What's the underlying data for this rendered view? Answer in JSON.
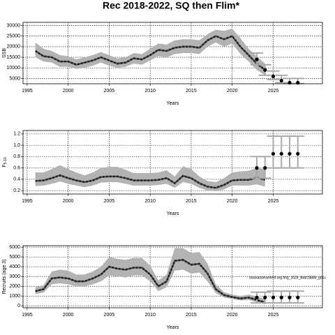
{
  "title": "Rec 2018-2022, SQ then Flim*",
  "chart_data": [
    {
      "type": "line",
      "ylabel": "SSB",
      "xlabel": "Years",
      "grid": true,
      "xlim": [
        1994.5,
        2031
      ],
      "xticks": [
        1995,
        2000,
        2005,
        2010,
        2015,
        2020,
        2025
      ],
      "ylim": [
        2500,
        31500
      ],
      "yticks": [
        5000,
        10000,
        15000,
        20000,
        25000,
        30000
      ],
      "x": [
        1996,
        1997,
        1998,
        1999,
        2000,
        2001,
        2002,
        2003,
        2004,
        2005,
        2006,
        2007,
        2008,
        2009,
        2010,
        2011,
        2012,
        2013,
        2014,
        2015,
        2016,
        2017,
        2018,
        2019,
        2020,
        2021,
        2022,
        2023,
        2024
      ],
      "series": [
        {
          "color": "#222222",
          "band_color": "#b3b3b3",
          "values": [
            18000,
            15500,
            15000,
            13000,
            13000,
            11500,
            12500,
            13500,
            15000,
            13500,
            12000,
            12500,
            14500,
            14000,
            16000,
            18500,
            18000,
            19500,
            20000,
            20000,
            19500,
            23000,
            25000,
            23500,
            25000,
            20000,
            16000,
            12000,
            9000
          ],
          "upper": [
            22000,
            19000,
            18000,
            16000,
            15500,
            14000,
            15000,
            16000,
            17500,
            16000,
            14500,
            15000,
            17000,
            16500,
            19000,
            21500,
            21000,
            23000,
            23500,
            23500,
            23000,
            26000,
            28000,
            27500,
            28500,
            24000,
            19000,
            15500,
            12000
          ],
          "lower": [
            15000,
            13000,
            12500,
            10500,
            10500,
            9500,
            10000,
            11000,
            12500,
            11000,
            10000,
            10500,
            12000,
            11500,
            13500,
            15500,
            15000,
            16500,
            17000,
            17000,
            16500,
            20000,
            22000,
            20000,
            21500,
            16500,
            13000,
            9000,
            6500
          ]
        }
      ],
      "projection": {
        "color": "#000000",
        "bar_color": "#aaaaaa",
        "x": [
          2023,
          2024,
          2025,
          2026,
          2027,
          2028
        ],
        "values": [
          14000,
          9000,
          6000,
          4000,
          3000,
          3000
        ],
        "lower": [
          11500,
          6500,
          4500,
          3000,
          2600,
          2600
        ],
        "upper": [
          17000,
          11500,
          8500,
          6500,
          5000,
          5000
        ]
      }
    },
    {
      "type": "line",
      "ylabel": "F",
      "ylabel_subscript": "5-10",
      "xlabel": "Years",
      "grid": true,
      "xlim": [
        1994.5,
        2031
      ],
      "xticks": [
        1995,
        2000,
        2005,
        2010,
        2015,
        2020,
        2025
      ],
      "ylim": [
        0.14,
        1.26
      ],
      "yticks": [
        0.2,
        0.4,
        0.6,
        0.8,
        {
          "value": 1,
          "label": "1.0"
        },
        1.2
      ],
      "x": [
        1996,
        1997,
        1998,
        1999,
        2000,
        2001,
        2002,
        2003,
        2004,
        2005,
        2006,
        2007,
        2008,
        2009,
        2010,
        2011,
        2012,
        2013,
        2014,
        2015,
        2016,
        2017,
        2018,
        2019,
        2020,
        2021,
        2022,
        2023,
        2024
      ],
      "series": [
        {
          "color": "#222222",
          "band_color": "#b3b3b3",
          "values": [
            0.37,
            0.38,
            0.42,
            0.47,
            0.42,
            0.38,
            0.35,
            0.38,
            0.44,
            0.45,
            0.45,
            0.42,
            0.38,
            0.38,
            0.38,
            0.39,
            0.42,
            0.33,
            0.46,
            0.42,
            0.33,
            0.27,
            0.25,
            0.3,
            0.38,
            0.39,
            0.39,
            0.43,
            0.39
          ],
          "upper": [
            0.52,
            0.52,
            0.58,
            0.65,
            0.58,
            0.52,
            0.47,
            0.52,
            0.6,
            0.62,
            0.62,
            0.57,
            0.51,
            0.51,
            0.51,
            0.52,
            0.56,
            0.45,
            0.63,
            0.58,
            0.45,
            0.37,
            0.35,
            0.42,
            0.52,
            0.54,
            0.55,
            0.6,
            0.58
          ],
          "lower": [
            0.28,
            0.29,
            0.32,
            0.36,
            0.32,
            0.29,
            0.26,
            0.29,
            0.34,
            0.35,
            0.35,
            0.32,
            0.29,
            0.29,
            0.29,
            0.3,
            0.32,
            0.25,
            0.35,
            0.32,
            0.25,
            0.2,
            0.19,
            0.22,
            0.29,
            0.29,
            0.29,
            0.31,
            0.27
          ]
        }
      ],
      "projection": {
        "color": "#000000",
        "bar_color": "#aaaaaa",
        "x": [
          2023,
          2024,
          2025,
          2026,
          2027,
          2028
        ],
        "values": [
          0.6,
          0.6,
          0.85,
          0.85,
          0.85,
          0.85
        ],
        "lower": [
          0.42,
          0.42,
          0.6,
          0.6,
          0.6,
          0.6
        ],
        "upper": [
          0.8,
          0.8,
          1.16,
          1.16,
          1.16,
          1.16
        ]
      }
    },
    {
      "type": "line",
      "ylabel": "Recruits (age 3)",
      "xlabel": "Years",
      "grid": true,
      "annotation": "stockassessment.org.fmg_2025_Batr18886_g01c",
      "xlim": [
        1994.5,
        2031
      ],
      "xticks": [
        1995,
        2000,
        2005,
        2010,
        2015,
        2020,
        2025
      ],
      "ylim": [
        -200,
        6150
      ],
      "yticks": [
        0,
        1000,
        2000,
        3000,
        4000,
        5000,
        6000
      ],
      "x": [
        1996,
        1997,
        1998,
        1999,
        2000,
        2001,
        2002,
        2003,
        2004,
        2005,
        2006,
        2007,
        2008,
        2009,
        2010,
        2011,
        2012,
        2013,
        2014,
        2015,
        2016,
        2017,
        2018,
        2019,
        2020,
        2021,
        2022,
        2023,
        2024
      ],
      "series": [
        {
          "color": "#222222",
          "band_color": "#b3b3b3",
          "values": [
            1500,
            1700,
            2800,
            2900,
            2800,
            2500,
            2500,
            2800,
            3200,
            4000,
            3800,
            3700,
            3900,
            3900,
            3200,
            2000,
            2500,
            4600,
            4700,
            4200,
            4300,
            3300,
            1700,
            1100,
            900,
            750,
            850,
            600,
            350
          ],
          "upper": [
            1900,
            2100,
            3500,
            3700,
            3600,
            3200,
            3200,
            3500,
            4000,
            5000,
            4800,
            4700,
            4900,
            4900,
            4100,
            2600,
            3200,
            5900,
            5900,
            5400,
            5500,
            4300,
            2200,
            1400,
            1150,
            1000,
            1150,
            950,
            700
          ],
          "lower": [
            1200,
            1350,
            2200,
            2300,
            2200,
            2000,
            2000,
            2200,
            2500,
            3100,
            3000,
            2900,
            3100,
            3100,
            2500,
            1500,
            1900,
            3600,
            3700,
            3300,
            3400,
            2500,
            1300,
            850,
            700,
            550,
            600,
            350,
            150
          ]
        }
      ],
      "projection": {
        "color": "#000000",
        "bar_color": "#aaaaaa",
        "x": [
          2023,
          2024,
          2025,
          2026,
          2027,
          2028
        ],
        "values": [
          850,
          850,
          850,
          850,
          850,
          850
        ],
        "lower": [
          300,
          300,
          300,
          300,
          300,
          300
        ],
        "upper": [
          1400,
          1400,
          1500,
          1500,
          1500,
          1500
        ]
      }
    }
  ]
}
